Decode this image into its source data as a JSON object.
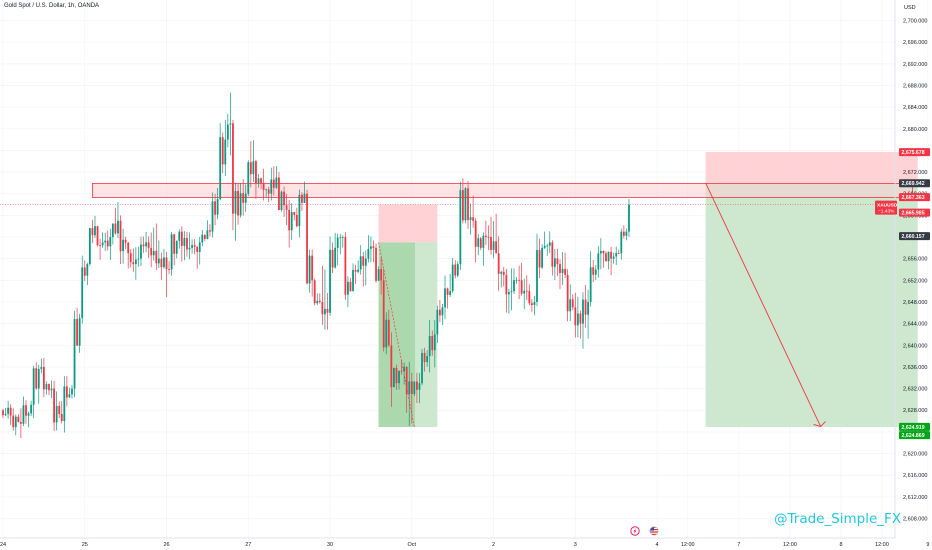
{
  "header": {
    "title": "Gold Spot / U.S. Dollar, 1h, OANDA",
    "currency": "USD"
  },
  "watermark": "@Trade_Simple_FX",
  "colors": {
    "up": "#089981",
    "down": "#f23645",
    "profit_zone": "#c8e6c9",
    "loss_zone": "#ffcdd2",
    "watermark": "#26c6da",
    "label_dark": "#363a45",
    "label_green": "#00a616"
  },
  "icons": [
    "lightning-icon",
    "us-flag-icon"
  ],
  "chart_data": {
    "type": "candlestick",
    "title": "Gold Spot / U.S. Dollar, 1h, OANDA",
    "y_axis": {
      "range": [
        2607,
        2703
      ],
      "ticks": [
        "2,700.000",
        "2,696.000",
        "2,692.000",
        "2,688.000",
        "2,684.000",
        "2,680.000",
        "2,676.000",
        "2,672.000",
        "2,668.000",
        "2,664.000",
        "2,660.000",
        "2,656.000",
        "2,652.000",
        "2,648.000",
        "2,644.000",
        "2,640.000",
        "2,636.000",
        "2,632.000",
        "2,628.000",
        "2,624.000",
        "2,620.000",
        "2,616.000",
        "2,612.000",
        "2,608.000"
      ],
      "tick_values": [
        2700,
        2696,
        2692,
        2688,
        2684,
        2680,
        2676,
        2672,
        2668,
        2664,
        2660,
        2656,
        2652,
        2648,
        2644,
        2640,
        2636,
        2632,
        2628,
        2624,
        2620,
        2616,
        2612,
        2608
      ]
    },
    "x_axis": {
      "ticks": [
        "24",
        "25",
        "26",
        "27",
        "30",
        "Oct",
        "2",
        "3",
        "4",
        "12:00",
        "7",
        "12:00",
        "8",
        "12:00",
        "9",
        "12:00"
      ],
      "tick_positions": [
        0,
        32,
        64,
        96,
        128,
        160,
        192,
        224,
        256,
        268,
        288,
        308,
        328,
        344,
        362,
        378
      ]
    },
    "price_labels": [
      {
        "text": "2,675.678",
        "value": 2675.678,
        "kind": "stop"
      },
      {
        "text": "2,669.942",
        "value": 2669.942,
        "kind": "level"
      },
      {
        "text": "2,667.363",
        "value": 2667.363,
        "kind": "entry"
      },
      {
        "text": "2,665.985",
        "value": 2665.985,
        "kind": "current"
      },
      {
        "text": "2,660.157",
        "value": 2660.157,
        "kind": "level"
      },
      {
        "text": "2,624.919",
        "value": 2624.919,
        "kind": "target"
      },
      {
        "text": "2,624.869",
        "value": 2624.869,
        "kind": "target"
      }
    ],
    "current_price": {
      "symbol": "XAUUSD",
      "price": "2,665.985",
      "change": "−1.43%"
    },
    "resistance_zone": {
      "from": 2667.3,
      "to": 2669.9,
      "start_bar": 35,
      "end_bar": 356
    },
    "short_position_1": {
      "entry_bar": 147,
      "end_bar": 170,
      "entry": 2659,
      "stop": 2666,
      "target": 2624.9
    },
    "short_position_2": {
      "entry_bar": 275,
      "end_bar": 358,
      "entry": 2670,
      "stop": 2675.7,
      "target": 2624.9
    },
    "projection_arrow": {
      "from_bar": 275,
      "from_price": 2670,
      "to_bar": 320,
      "to_price": 2625
    },
    "candles": [
      {
        "bar": 0,
        "o": 2628.0,
        "h": 2629.0,
        "l": 2626.0,
        "c": 2627.0
      },
      {
        "bar": 4,
        "o": 2627.0,
        "h": 2628.5,
        "l": 2624.0,
        "c": 2625.5
      },
      {
        "bar": 8,
        "o": 2625.5,
        "h": 2629.5,
        "l": 2624.5,
        "c": 2629.0
      },
      {
        "bar": 12,
        "o": 2629.0,
        "h": 2638.0,
        "l": 2627.0,
        "c": 2636.0
      },
      {
        "bar": 16,
        "o": 2636.0,
        "h": 2637.0,
        "l": 2631.0,
        "c": 2632.0
      },
      {
        "bar": 20,
        "o": 2632.0,
        "h": 2634.0,
        "l": 2624.0,
        "c": 2626.0
      },
      {
        "bar": 24,
        "o": 2626.0,
        "h": 2633.0,
        "l": 2625.0,
        "c": 2632.0
      },
      {
        "bar": 28,
        "o": 2632.0,
        "h": 2646.0,
        "l": 2631.0,
        "c": 2645.0
      },
      {
        "bar": 31,
        "o": 2645.0,
        "h": 2656.0,
        "l": 2644.0,
        "c": 2655.0
      },
      {
        "bar": 34,
        "o": 2655.0,
        "h": 2663.0,
        "l": 2654.0,
        "c": 2662.0
      },
      {
        "bar": 37,
        "o": 2662.0,
        "h": 2663.0,
        "l": 2657.0,
        "c": 2659.0
      },
      {
        "bar": 40,
        "o": 2659.0,
        "h": 2664.0,
        "l": 2657.0,
        "c": 2660.0
      },
      {
        "bar": 43,
        "o": 2660.0,
        "h": 2669.0,
        "l": 2659.0,
        "c": 2663.0
      },
      {
        "bar": 46,
        "o": 2663.0,
        "h": 2664.0,
        "l": 2655.0,
        "c": 2657.0
      },
      {
        "bar": 50,
        "o": 2657.0,
        "h": 2660.0,
        "l": 2654.0,
        "c": 2656.0
      },
      {
        "bar": 54,
        "o": 2656.0,
        "h": 2659.0,
        "l": 2654.5,
        "c": 2658.0
      },
      {
        "bar": 58,
        "o": 2658.0,
        "h": 2662.0,
        "l": 2655.0,
        "c": 2656.0
      },
      {
        "bar": 62,
        "o": 2656.0,
        "h": 2657.0,
        "l": 2650.0,
        "c": 2654.0
      },
      {
        "bar": 66,
        "o": 2654.0,
        "h": 2662.0,
        "l": 2653.0,
        "c": 2661.0
      },
      {
        "bar": 70,
        "o": 2661.0,
        "h": 2663.0,
        "l": 2656.0,
        "c": 2658.0
      },
      {
        "bar": 74,
        "o": 2658.0,
        "h": 2660.0,
        "l": 2655.0,
        "c": 2659.0
      },
      {
        "bar": 78,
        "o": 2659.0,
        "h": 2662.0,
        "l": 2657.0,
        "c": 2661.0
      },
      {
        "bar": 82,
        "o": 2661.0,
        "h": 2668.0,
        "l": 2660.0,
        "c": 2667.0
      },
      {
        "bar": 85,
        "o": 2667.0,
        "h": 2683.0,
        "l": 2666.0,
        "c": 2678.0
      },
      {
        "bar": 88,
        "o": 2678.0,
        "h": 2686.0,
        "l": 2670.0,
        "c": 2681.0
      },
      {
        "bar": 90,
        "o": 2681.0,
        "h": 2682.0,
        "l": 2660.0,
        "c": 2664.0
      },
      {
        "bar": 93,
        "o": 2664.0,
        "h": 2670.0,
        "l": 2662.0,
        "c": 2668.0
      },
      {
        "bar": 96,
        "o": 2668.0,
        "h": 2677.0,
        "l": 2666.0,
        "c": 2674.0
      },
      {
        "bar": 99,
        "o": 2674.0,
        "h": 2676.0,
        "l": 2668.0,
        "c": 2670.0
      },
      {
        "bar": 102,
        "o": 2670.0,
        "h": 2672.0,
        "l": 2666.0,
        "c": 2668.0
      },
      {
        "bar": 105,
        "o": 2668.0,
        "h": 2674.0,
        "l": 2667.0,
        "c": 2671.0
      },
      {
        "bar": 108,
        "o": 2671.0,
        "h": 2672.0,
        "l": 2663.0,
        "c": 2665.0
      },
      {
        "bar": 112,
        "o": 2665.0,
        "h": 2666.0,
        "l": 2660.0,
        "c": 2662.0
      },
      {
        "bar": 116,
        "o": 2662.0,
        "h": 2670.0,
        "l": 2661.0,
        "c": 2668.0
      },
      {
        "bar": 119,
        "o": 2668.0,
        "h": 2669.0,
        "l": 2650.0,
        "c": 2652.0
      },
      {
        "bar": 122,
        "o": 2652.0,
        "h": 2655.0,
        "l": 2646.0,
        "c": 2648.0
      },
      {
        "bar": 125,
        "o": 2648.0,
        "h": 2655.0,
        "l": 2643.0,
        "c": 2646.0
      },
      {
        "bar": 128,
        "o": 2646.0,
        "h": 2660.0,
        "l": 2645.0,
        "c": 2658.0
      },
      {
        "bar": 131,
        "o": 2658.0,
        "h": 2662.0,
        "l": 2655.0,
        "c": 2660.0
      },
      {
        "bar": 134,
        "o": 2660.0,
        "h": 2661.0,
        "l": 2648.0,
        "c": 2650.0
      },
      {
        "bar": 137,
        "o": 2650.0,
        "h": 2655.0,
        "l": 2648.0,
        "c": 2654.0
      },
      {
        "bar": 140,
        "o": 2654.0,
        "h": 2657.0,
        "l": 2651.0,
        "c": 2656.0
      },
      {
        "bar": 143,
        "o": 2656.0,
        "h": 2660.0,
        "l": 2653.0,
        "c": 2658.0
      },
      {
        "bar": 146,
        "o": 2658.0,
        "h": 2659.0,
        "l": 2649.0,
        "c": 2652.0
      },
      {
        "bar": 149,
        "o": 2652.0,
        "h": 2653.0,
        "l": 2638.0,
        "c": 2640.0
      },
      {
        "bar": 152,
        "o": 2640.0,
        "h": 2642.0,
        "l": 2630.0,
        "c": 2633.0
      },
      {
        "bar": 155,
        "o": 2633.0,
        "h": 2638.0,
        "l": 2629.0,
        "c": 2636.0
      },
      {
        "bar": 158,
        "o": 2636.0,
        "h": 2640.0,
        "l": 2626.0,
        "c": 2631.0
      },
      {
        "bar": 161,
        "o": 2631.0,
        "h": 2635.0,
        "l": 2629.0,
        "c": 2633.0
      },
      {
        "bar": 164,
        "o": 2633.0,
        "h": 2640.0,
        "l": 2632.0,
        "c": 2638.0
      },
      {
        "bar": 167,
        "o": 2638.0,
        "h": 2644.0,
        "l": 2636.0,
        "c": 2642.0
      },
      {
        "bar": 170,
        "o": 2642.0,
        "h": 2648.0,
        "l": 2641.0,
        "c": 2647.0
      },
      {
        "bar": 173,
        "o": 2647.0,
        "h": 2652.0,
        "l": 2645.0,
        "c": 2650.0
      },
      {
        "bar": 176,
        "o": 2650.0,
        "h": 2657.0,
        "l": 2649.0,
        "c": 2655.0
      },
      {
        "bar": 179,
        "o": 2655.0,
        "h": 2671.0,
        "l": 2653.0,
        "c": 2669.0
      },
      {
        "bar": 182,
        "o": 2669.0,
        "h": 2672.0,
        "l": 2661.0,
        "c": 2663.0
      },
      {
        "bar": 185,
        "o": 2663.0,
        "h": 2665.0,
        "l": 2656.0,
        "c": 2658.0
      },
      {
        "bar": 188,
        "o": 2658.0,
        "h": 2662.0,
        "l": 2655.0,
        "c": 2660.0
      },
      {
        "bar": 191,
        "o": 2660.0,
        "h": 2664.0,
        "l": 2656.0,
        "c": 2657.0
      },
      {
        "bar": 194,
        "o": 2657.0,
        "h": 2659.0,
        "l": 2651.0,
        "c": 2653.0
      },
      {
        "bar": 197,
        "o": 2653.0,
        "h": 2657.0,
        "l": 2647.0,
        "c": 2650.0
      },
      {
        "bar": 200,
        "o": 2650.0,
        "h": 2654.0,
        "l": 2646.0,
        "c": 2652.0
      },
      {
        "bar": 203,
        "o": 2652.0,
        "h": 2656.0,
        "l": 2648.0,
        "c": 2650.0
      },
      {
        "bar": 206,
        "o": 2650.0,
        "h": 2653.0,
        "l": 2646.0,
        "c": 2648.0
      },
      {
        "bar": 209,
        "o": 2648.0,
        "h": 2660.0,
        "l": 2647.0,
        "c": 2658.0
      },
      {
        "bar": 212,
        "o": 2658.0,
        "h": 2661.0,
        "l": 2656.0,
        "c": 2659.0
      },
      {
        "bar": 215,
        "o": 2659.0,
        "h": 2660.0,
        "l": 2653.0,
        "c": 2655.0
      },
      {
        "bar": 218,
        "o": 2655.0,
        "h": 2657.0,
        "l": 2651.0,
        "c": 2653.0
      },
      {
        "bar": 221,
        "o": 2653.0,
        "h": 2655.0,
        "l": 2645.0,
        "c": 2647.0
      },
      {
        "bar": 224,
        "o": 2647.0,
        "h": 2650.0,
        "l": 2642.0,
        "c": 2644.0
      },
      {
        "bar": 227,
        "o": 2644.0,
        "h": 2650.0,
        "l": 2637.0,
        "c": 2648.0
      },
      {
        "bar": 230,
        "o": 2648.0,
        "h": 2656.0,
        "l": 2647.0,
        "c": 2654.0
      },
      {
        "bar": 233,
        "o": 2654.0,
        "h": 2659.0,
        "l": 2652.0,
        "c": 2657.0
      },
      {
        "bar": 236,
        "o": 2657.0,
        "h": 2659.0,
        "l": 2654.0,
        "c": 2656.0
      },
      {
        "bar": 239,
        "o": 2656.0,
        "h": 2658.0,
        "l": 2654.0,
        "c": 2657.0
      },
      {
        "bar": 242,
        "o": 2657.0,
        "h": 2662.0,
        "l": 2656.0,
        "c": 2661.0
      },
      {
        "bar": 245,
        "o": 2661.0,
        "h": 2667.0,
        "l": 2660.0,
        "c": 2666.0
      }
    ]
  }
}
